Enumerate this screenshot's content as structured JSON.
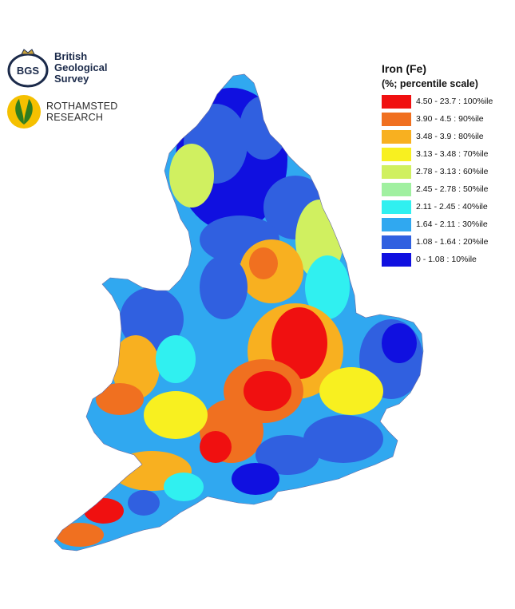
{
  "logos": {
    "bgs": {
      "mark_text": "BGS",
      "lines": [
        "British",
        "Geological",
        "Survey"
      ]
    },
    "rothamsted": {
      "lines": [
        "ROTHAMSTED",
        "RESEARCH"
      ]
    }
  },
  "legend": {
    "title": "Iron (Fe)",
    "subtitle": "(%; percentile scale)",
    "items": [
      {
        "label": "4.50 - 23.7 : 100%ile",
        "color": "#f01010"
      },
      {
        "label": "3.90 - 4.5 : 90%ile",
        "color": "#f07020"
      },
      {
        "label": "3.48 - 3.9 : 80%ile",
        "color": "#f8b020"
      },
      {
        "label": "3.13 - 3.48 : 70%ile",
        "color": "#f8f020"
      },
      {
        "label": "2.78 - 3.13 : 60%ile",
        "color": "#d0f060"
      },
      {
        "label": "2.45 - 2.78 : 50%ile",
        "color": "#a0f0a0"
      },
      {
        "label": "2.11 - 2.45 : 40%ile",
        "color": "#30f0f0"
      },
      {
        "label": "1.64 - 2.11 : 30%ile",
        "color": "#30a8f0"
      },
      {
        "label": "1.08 - 1.64 : 20%ile",
        "color": "#3060e0"
      },
      {
        "label": "0 - 1.08 : 10%ile",
        "color": "#1010e0"
      }
    ]
  }
}
